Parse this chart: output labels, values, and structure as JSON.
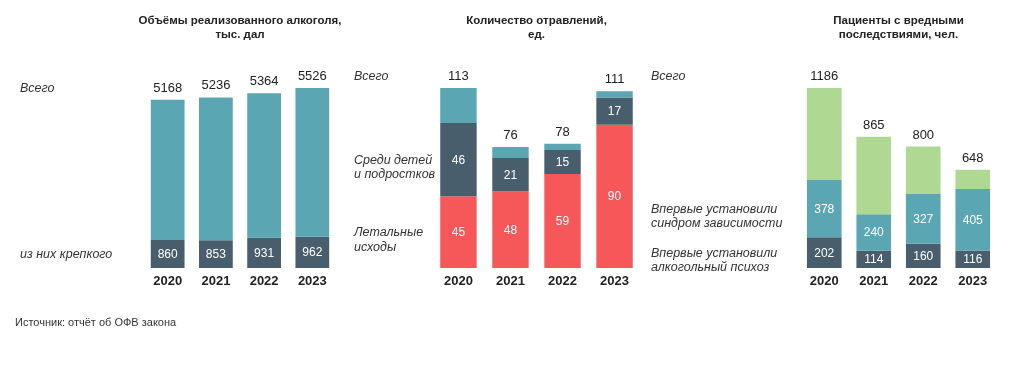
{
  "chart_data": [
    {
      "type": "bar",
      "stacked": true,
      "title": "Объёмы реализованного алкоголя,\nтыс. дал",
      "categories": [
        "2020",
        "2021",
        "2022",
        "2023"
      ],
      "series": [
        {
          "name": "из них крепкого",
          "color": "#485e6c",
          "values": [
            860,
            853,
            931,
            962
          ],
          "value_labels": [
            "860",
            "853",
            "931",
            "962"
          ]
        },
        {
          "color": "#5aa6b2",
          "values": [
            4308,
            4383,
            4433,
            4564
          ]
        }
      ],
      "totals": [
        "5168",
        "5236",
        "5364",
        "5526"
      ],
      "annotations": [
        "Всего",
        "Источник: отчёт об ОФВ закона"
      ]
    },
    {
      "type": "bar",
      "stacked": true,
      "title": "Количество отравлений,\nед.",
      "categories": [
        "2020",
        "2021",
        "2022",
        "2023"
      ],
      "series": [
        {
          "name": "Летальные\nисходы",
          "color": "#f65759",
          "values": [
            45,
            48,
            59,
            90
          ],
          "value_labels": [
            "45",
            "48",
            "59",
            "90"
          ]
        },
        {
          "name": "Среди детей\nи подростков",
          "color": "#485e6c",
          "values": [
            46,
            21,
            15,
            17
          ],
          "value_labels": [
            "46",
            "21",
            "15",
            "17"
          ]
        },
        {
          "color": "#5aa6b2",
          "values": [
            22,
            7,
            4,
            4
          ]
        }
      ],
      "totals": [
        "113",
        "76",
        "78",
        "111"
      ],
      "annotations": [
        "Всего"
      ]
    },
    {
      "type": "bar",
      "stacked": true,
      "title": "Пациенты с вредными\nпоследствиями, чел.",
      "categories": [
        "2020",
        "2021",
        "2022",
        "2023"
      ],
      "series": [
        {
          "name": "Впервые установили\nалкогольный психоз",
          "color": "#485e6c",
          "values": [
            202,
            114,
            160,
            116
          ],
          "value_labels": [
            "202",
            "114",
            "160",
            "116"
          ]
        },
        {
          "name": "Впервые установили\nсиндром зависимости",
          "color": "#5aa6b2",
          "values": [
            378,
            240,
            327,
            405
          ],
          "value_labels": [
            "378",
            "240",
            "327",
            "405"
          ]
        },
        {
          "color": "#afd992",
          "values": [
            606,
            511,
            313,
            127
          ]
        }
      ],
      "totals": [
        "1186",
        "865",
        "800",
        "648"
      ],
      "annotations": [
        "Всего"
      ]
    }
  ]
}
